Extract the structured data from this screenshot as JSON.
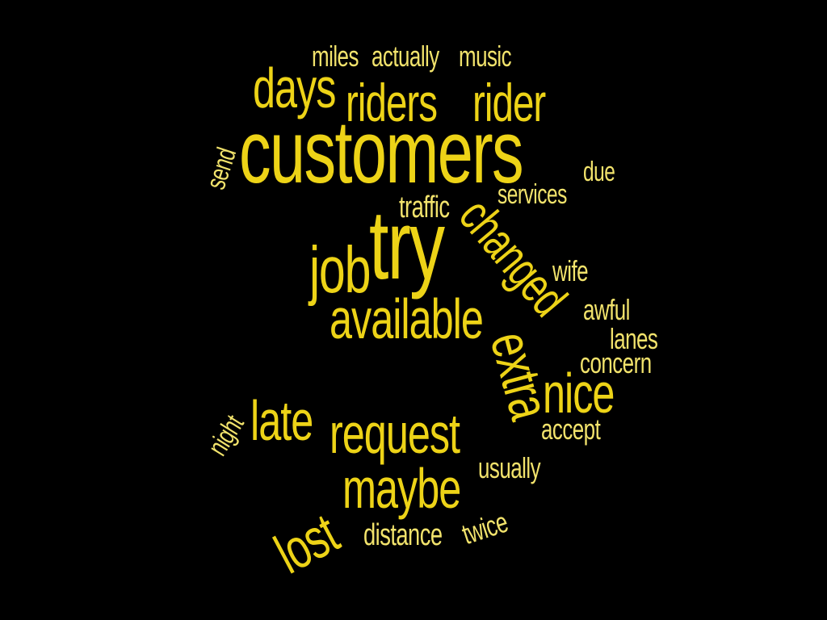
{
  "colors": {
    "background": "#000000",
    "word_primary": "#EDD317",
    "word_light": "#F2E36C"
  },
  "words": {
    "miles": "miles",
    "actually": "actually",
    "music": "music",
    "days": "days",
    "riders": "riders",
    "rider": "rider",
    "send": "send",
    "customers": "customers",
    "due": "due",
    "services": "services",
    "traffic": "traffic",
    "try": "try",
    "changed": "changed",
    "job": "job",
    "wife": "wife",
    "available": "available",
    "awful": "awful",
    "lanes": "lanes",
    "concern": "concern",
    "extra": "extra",
    "nice": "nice",
    "night": "night",
    "late": "late",
    "request": "request",
    "accept": "accept",
    "lost": "lost",
    "maybe": "maybe",
    "usually": "usually",
    "twice": "twice",
    "distance": "distance"
  }
}
